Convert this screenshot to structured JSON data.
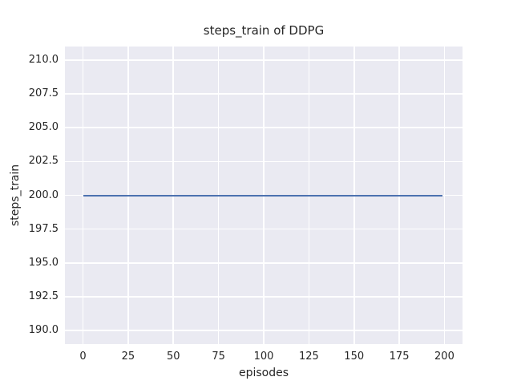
{
  "chart_data": {
    "type": "line",
    "title": "steps_train of DDPG",
    "xlabel": "episodes",
    "ylabel": "steps_train",
    "xlim": [
      -10,
      210
    ],
    "ylim": [
      189,
      211
    ],
    "xticks": [
      0,
      25,
      50,
      75,
      100,
      125,
      150,
      175,
      200
    ],
    "xtick_labels": [
      "0",
      "25",
      "50",
      "75",
      "100",
      "125",
      "150",
      "175",
      "200"
    ],
    "yticks": [
      190.0,
      192.5,
      195.0,
      197.5,
      200.0,
      202.5,
      205.0,
      207.5,
      210.0
    ],
    "ytick_labels": [
      "190.0",
      "192.5",
      "195.0",
      "197.5",
      "200.0",
      "202.5",
      "205.0",
      "207.5",
      "210.0"
    ],
    "grid": true,
    "legend": false,
    "plot_background_color": "#eaeaf2",
    "grid_color": "#ffffff",
    "text_color": "#262626",
    "series": [
      {
        "name": "steps_train",
        "color": "#4c72b0",
        "x": [
          0,
          199
        ],
        "y": [
          200,
          200
        ],
        "note": "constant value 200 across all episodes 0-199"
      }
    ]
  }
}
